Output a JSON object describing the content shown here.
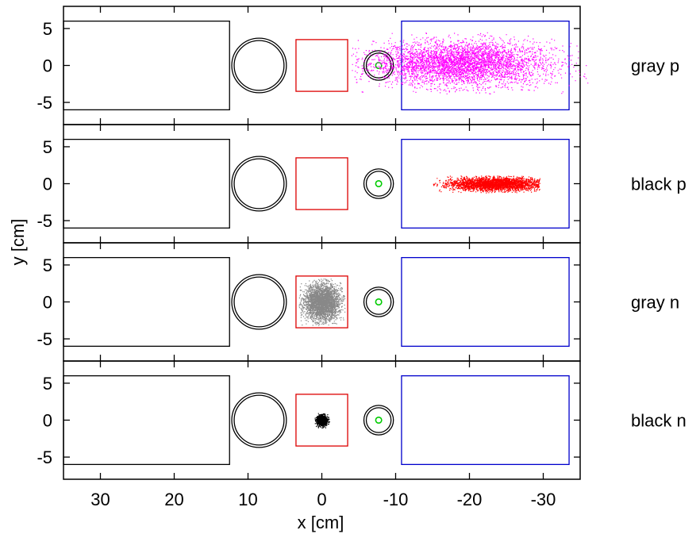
{
  "chart_data": {
    "type": "scatter",
    "xlabel": "x [cm]",
    "ylabel": "y [cm]",
    "xlim": [
      35,
      -35
    ],
    "ylim": [
      -8,
      8
    ],
    "x_ticks": [
      "30",
      "20",
      "10",
      "0",
      "-10",
      "-20",
      "-30"
    ],
    "y_ticks": [
      "5",
      "0",
      "-5"
    ],
    "grid": false,
    "detector_outlines": [
      {
        "shape": "rectangle",
        "x": [
          12.5,
          35
        ],
        "y": [
          -6,
          6
        ],
        "color": "#000000"
      },
      {
        "shape": "double-circle",
        "cx": 8.5,
        "cy": 0,
        "r": 3.7,
        "color": "#000000"
      },
      {
        "shape": "rectangle",
        "x": [
          -3.5,
          3.5
        ],
        "y": [
          -3.5,
          3.5
        ],
        "color": "#dd0000"
      },
      {
        "shape": "double-circle",
        "cx": -7.7,
        "cy": 0,
        "r": 2.0,
        "color": "#000000"
      },
      {
        "shape": "circle",
        "cx": -7.7,
        "cy": 0,
        "r": 0.4,
        "color": "#00cc00"
      },
      {
        "shape": "rectangle",
        "x": [
          -33.5,
          -10.8
        ],
        "y": [
          -6,
          6
        ],
        "color": "#0000cc"
      }
    ],
    "panels": [
      {
        "label": "gray p",
        "color": "#ff00ff",
        "cloud": {
          "center_x": -19,
          "center_y": 0.3,
          "sigma_x": 6,
          "sigma_y": 1.5,
          "x_range": [
            -36,
            -4
          ],
          "y_range": [
            -3.8,
            4.5
          ],
          "points": 4200
        }
      },
      {
        "label": "black p",
        "color": "#ff0000",
        "cloud": {
          "center_x": -23.5,
          "center_y": 0,
          "sigma_x": 3.2,
          "sigma_y": 0.45,
          "x_range": [
            -29.5,
            -15
          ],
          "y_range": [
            -1.2,
            1.1
          ],
          "points": 3000
        }
      },
      {
        "label": "gray n",
        "color": "#888888",
        "cloud": {
          "center_x": 0,
          "center_y": 0,
          "sigma_x": 1.2,
          "sigma_y": 1.2,
          "x_range": [
            -3.2,
            3.2
          ],
          "y_range": [
            -3.2,
            3.2
          ],
          "points": 3000
        }
      },
      {
        "label": "black n",
        "color": "#000000",
        "cloud": {
          "center_x": 0,
          "center_y": 0,
          "sigma_x": 0.35,
          "sigma_y": 0.35,
          "x_range": [
            -1,
            1
          ],
          "y_range": [
            -1,
            1
          ],
          "points": 900
        }
      }
    ]
  }
}
